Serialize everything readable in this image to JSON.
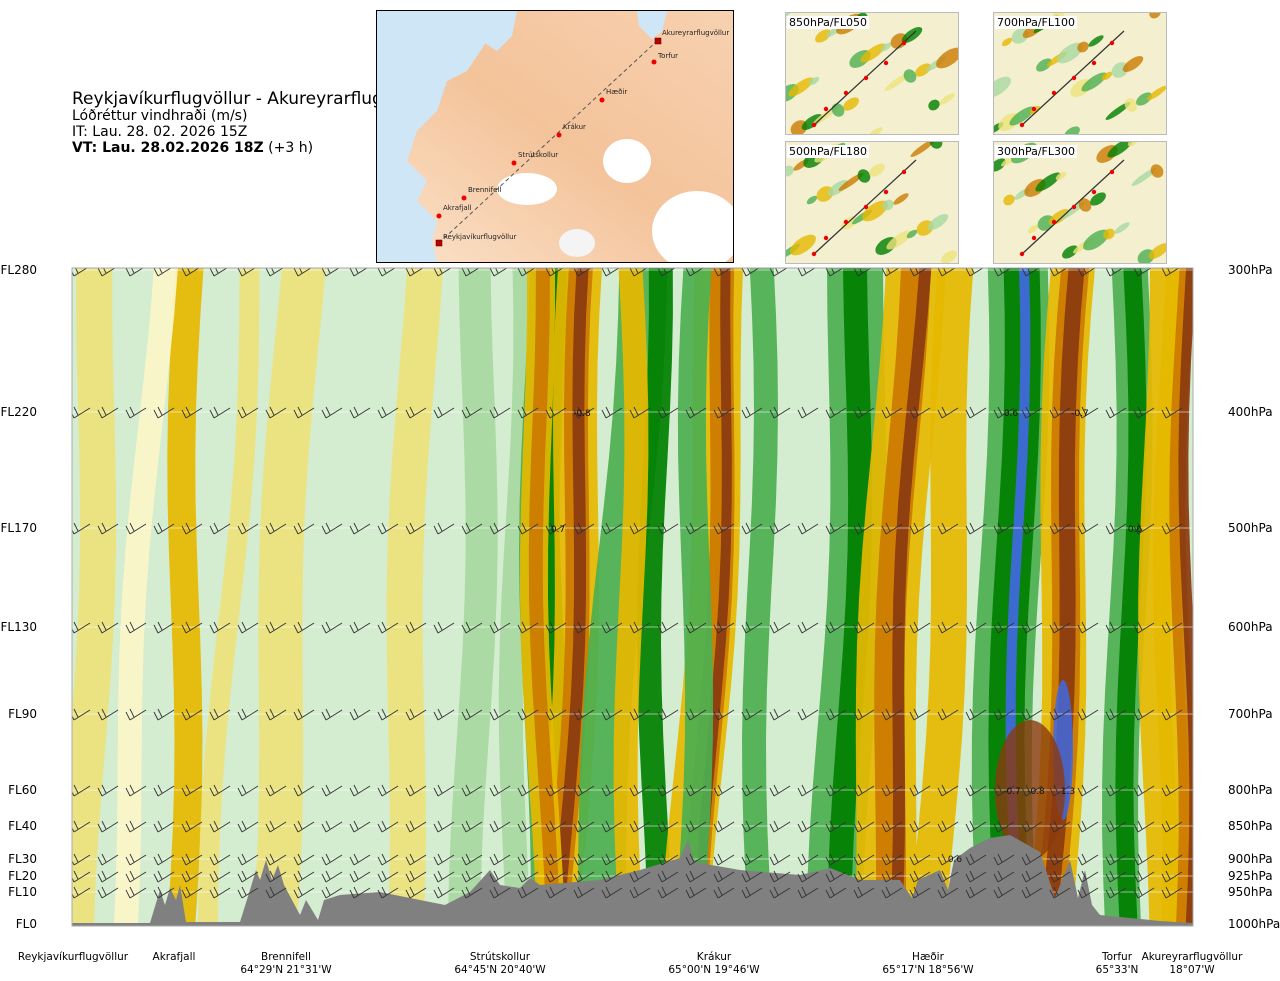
{
  "header": {
    "title": "Reykjavíkurflugvöllur - Akureyrarflugvöllur",
    "variable": "Lóðréttur vindhraði (m/s)",
    "it": "IT: Lau. 28. 02. 2026 15Z",
    "vt": "VT: Lau. 28.02.2026 18Z",
    "vt_offset": "(+3 h)"
  },
  "map": {
    "route_points": [
      {
        "name": "Akureyrarflugvöllur"
      },
      {
        "name": "Torfur"
      },
      {
        "name": "Hæðir"
      },
      {
        "name": "Krákur"
      },
      {
        "name": "Strútskollur"
      },
      {
        "name": "Brennifell"
      },
      {
        "name": "Akrafjall"
      },
      {
        "name": "Reykjavíkurflugvöllur"
      }
    ]
  },
  "panels": [
    {
      "label": "850hPa/FL050"
    },
    {
      "label": "700hPa/FL100"
    },
    {
      "label": "500hPa/FL180"
    },
    {
      "label": "300hPa/FL300"
    }
  ],
  "levels": [
    {
      "fl": "FL280",
      "hpa": "300hPa"
    },
    {
      "fl": "FL220",
      "hpa": "400hPa"
    },
    {
      "fl": "FL170",
      "hpa": "500hPa"
    },
    {
      "fl": "FL130",
      "hpa": "600hPa"
    },
    {
      "fl": "FL90",
      "hpa": "700hPa"
    },
    {
      "fl": "FL60",
      "hpa": "800hPa"
    },
    {
      "fl": "FL40",
      "hpa": "850hPa"
    },
    {
      "fl": "FL30",
      "hpa": "900hPa"
    },
    {
      "fl": "FL20",
      "hpa": "925hPa"
    },
    {
      "fl": "FL10",
      "hpa": "950hPa"
    },
    {
      "fl": "FL0",
      "hpa": "1000hPa"
    }
  ],
  "locations": [
    {
      "name": "Reykjavíkurflugvöllur",
      "coord": ""
    },
    {
      "name": "Akrafjall",
      "coord": ""
    },
    {
      "name": "Brennifell",
      "coord": "64°29'N 21°31'W"
    },
    {
      "name": "Strútskollur",
      "coord": "64°45'N 20°40'W"
    },
    {
      "name": "Krákur",
      "coord": "65°00'N 19°46'W"
    },
    {
      "name": "Hæðir",
      "coord": "65°17'N 18°56'W"
    },
    {
      "name": "Torfur",
      "coord": "65°33'N"
    },
    {
      "name": "Akureyrarflugvöllur",
      "coord": "18°07'W"
    }
  ],
  "chart_data": {
    "type": "heatmap",
    "title": "Reykjavíkurflugvöllur - Akureyrarflugvöllur",
    "variable": "Lóðréttur vindhraði (m/s)",
    "y_levels_hpa": [
      300,
      400,
      500,
      600,
      700,
      800,
      850,
      900,
      925,
      950,
      1000
    ],
    "y_levels_fl": [
      "FL280",
      "FL220",
      "FL170",
      "FL130",
      "FL90",
      "FL60",
      "FL40",
      "FL30",
      "FL20",
      "FL10",
      "FL0"
    ],
    "grid": true,
    "annotations": [
      {
        "text": "-0.8",
        "near": "Strútskollur-Krákur",
        "level_hpa": 400
      },
      {
        "text": "0.7",
        "near": "Strútskollur-Krákur",
        "level_hpa": 500
      },
      {
        "text": "0.6",
        "near": "Hæðir-Torfur",
        "level_hpa": 400
      },
      {
        "text": "-0.7",
        "near": "Hæðir-Torfur",
        "level_hpa": 400
      },
      {
        "text": "0.6",
        "near": "Torfur",
        "level_hpa": 500
      },
      {
        "text": "-0.7",
        "near": "Hæðir-Torfur",
        "level_hpa": 800
      },
      {
        "text": "-0.8",
        "near": "Hæðir-Torfur",
        "level_hpa": 800
      },
      {
        "text": "1.3",
        "near": "Hæðir-Torfur",
        "level_hpa": 800
      },
      {
        "text": "0.6",
        "near": "Hæðir-Torfur",
        "level_hpa": 900
      }
    ],
    "colors": {
      "strong_up": "#008000",
      "up": "#4caf50",
      "weak_up": "#a7d8a0",
      "very_weak_up": "#d4ecd0",
      "neutral": "#fbf6c8",
      "weak_down": "#ede27a",
      "down": "#e6b800",
      "strong_down": "#cc7a00",
      "very_strong_down": "#8b3a0f",
      "max_up": "#4169e1",
      "terrain": "#808080"
    }
  }
}
